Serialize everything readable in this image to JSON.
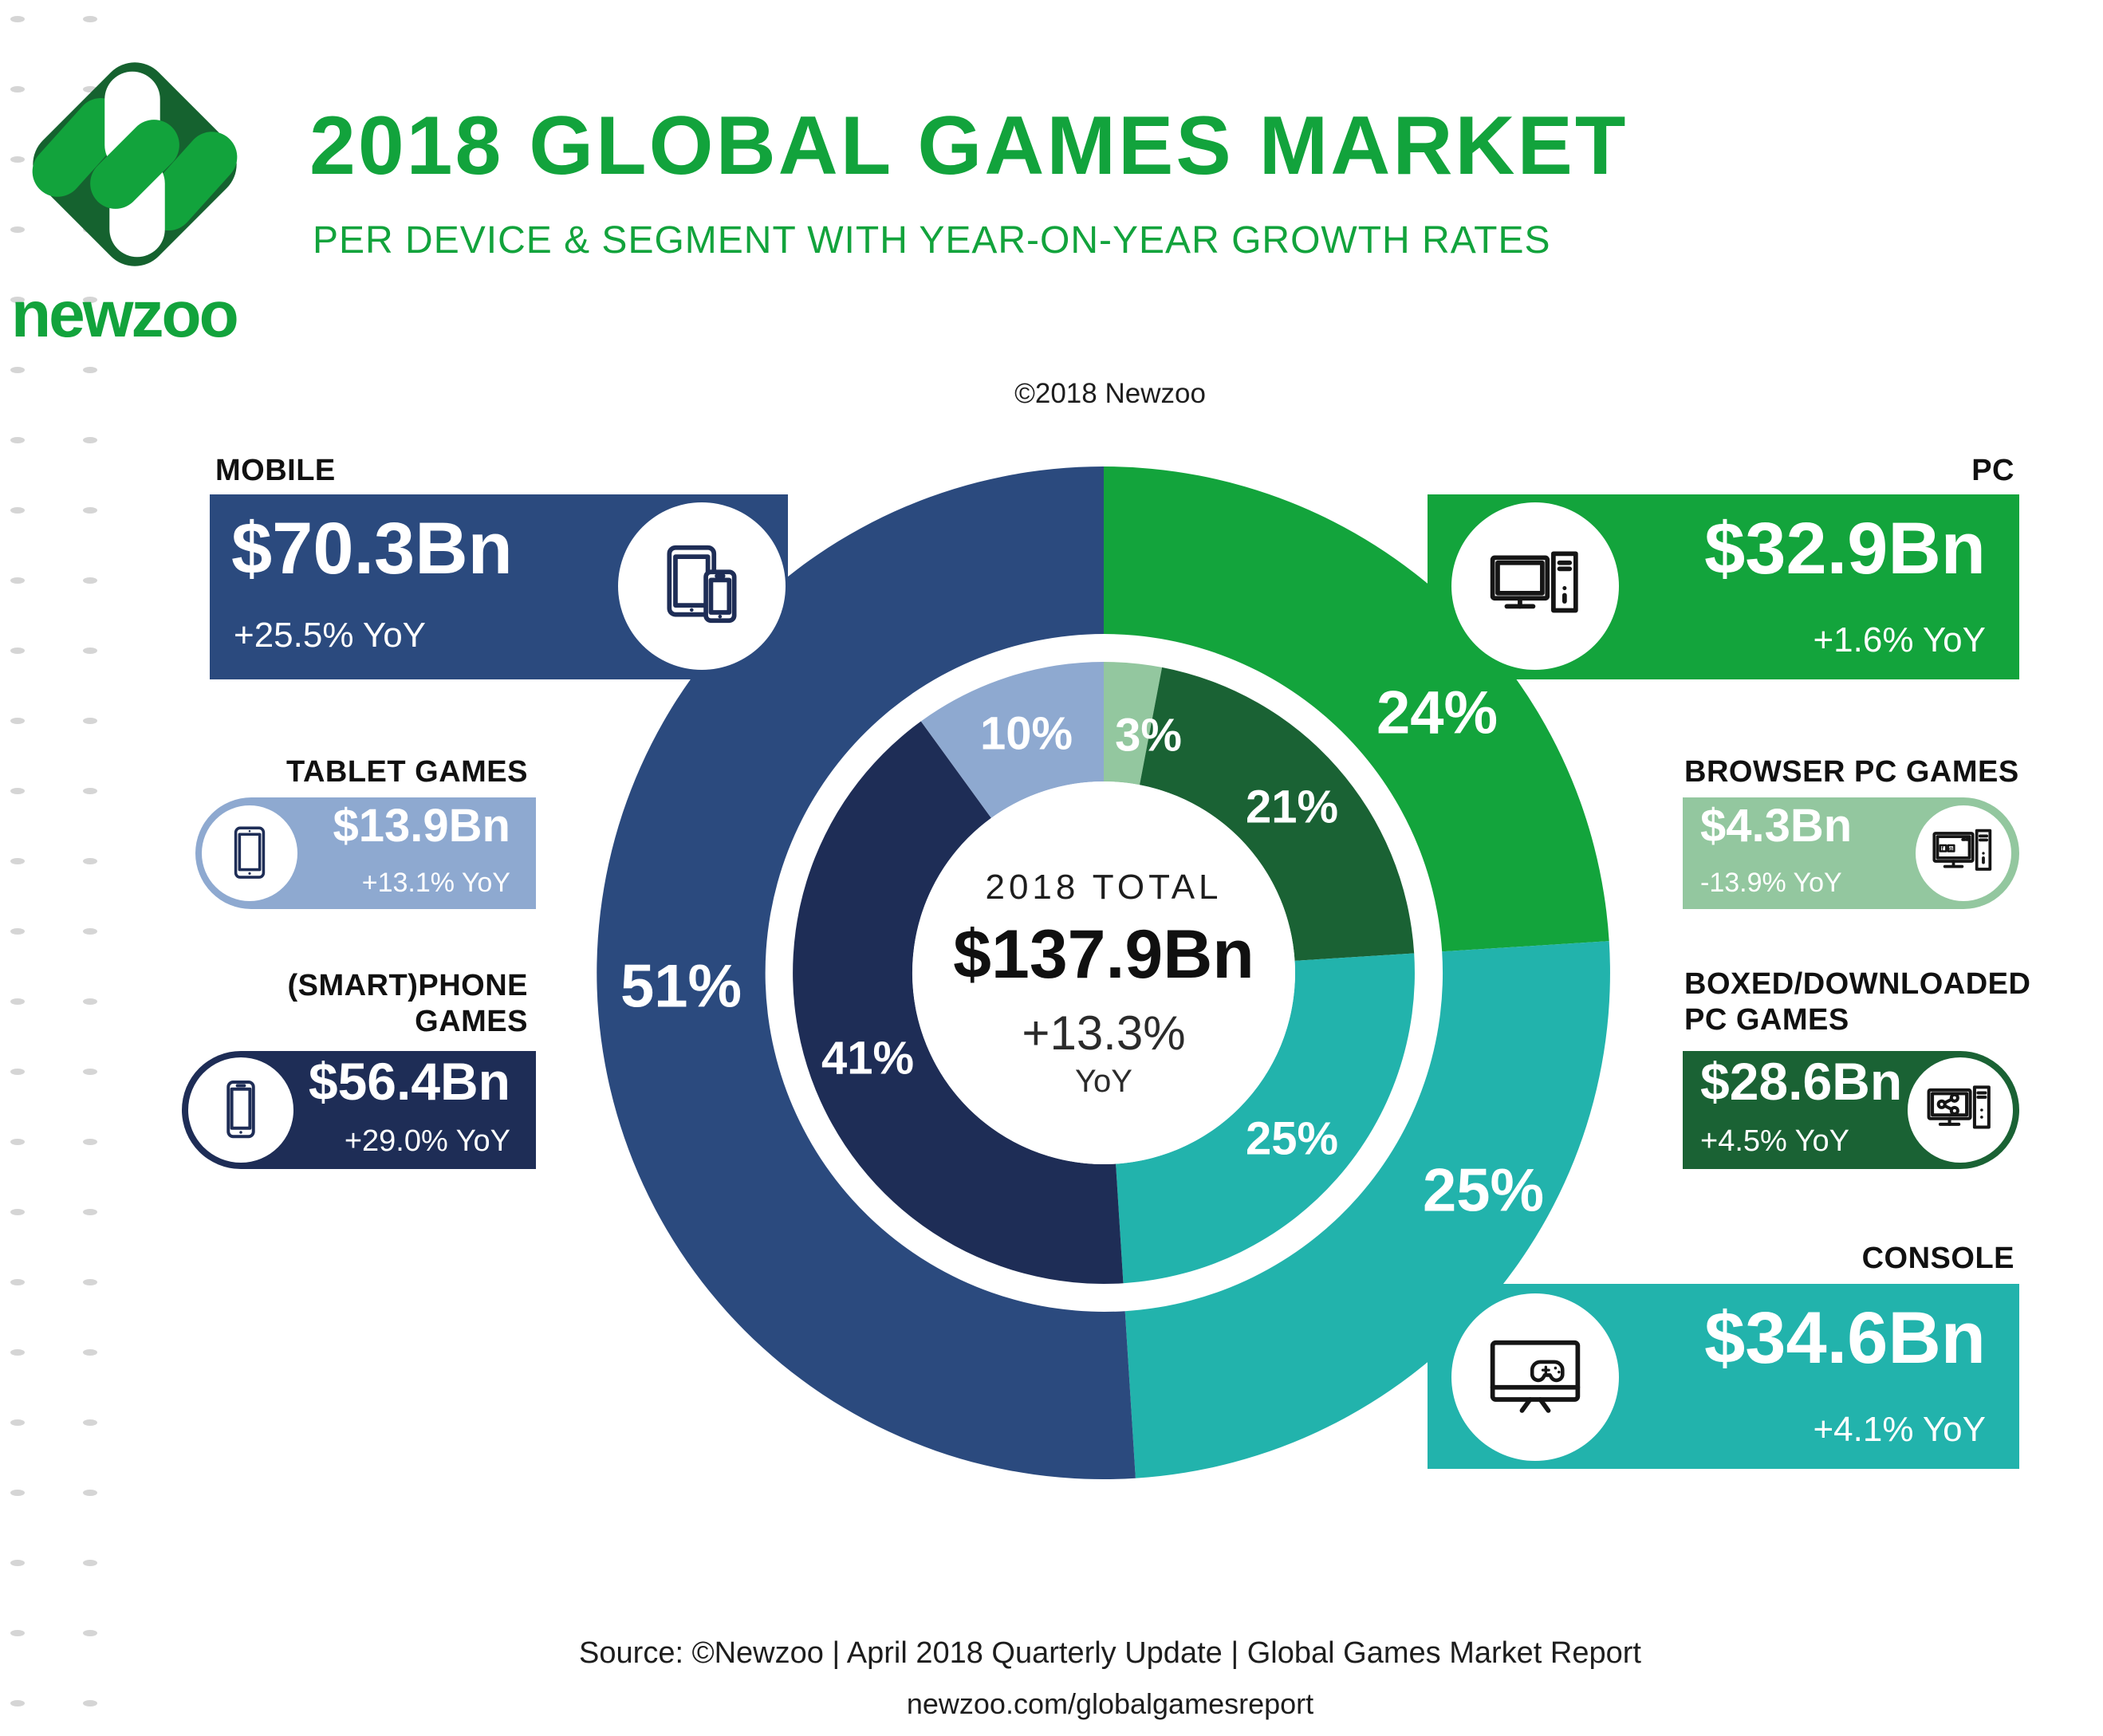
{
  "header": {
    "brand": "newzoo",
    "title": "2018 GLOBAL GAMES MARKET",
    "subtitle": "PER DEVICE & SEGMENT WITH YEAR-ON-YEAR GROWTH RATES",
    "copyright": "©2018 Newzoo",
    "accent_color": "#12a33c"
  },
  "center": {
    "label": "2018 TOTAL",
    "total": "$137.9Bn",
    "growth": "+13.3%",
    "growth_unit": "YoY"
  },
  "cards": [
    {
      "id": "mobile",
      "label": "MOBILE",
      "value": "$70.3Bn",
      "growth": "+25.5% YoY",
      "color": "#2b4a7e",
      "icon": "tablet-phone-icon",
      "icon_color": "#1e2d56"
    },
    {
      "id": "tablet",
      "label": "TABLET GAMES",
      "value": "$13.9Bn",
      "growth": "+13.1% YoY",
      "color": "#8ea9d0",
      "icon": "tablet-icon",
      "icon_color": "#1e2d56"
    },
    {
      "id": "smartphone",
      "label": "(SMART)PHONE\nGAMES",
      "value": "$56.4Bn",
      "growth": "+29.0% YoY",
      "color": "#1e2d56",
      "icon": "smartphone-icon",
      "icon_color": "#1e2d56"
    },
    {
      "id": "pc",
      "label": "PC",
      "value": "$32.9Bn",
      "growth": "+1.6% YoY",
      "color": "#13a43c",
      "icon": "desktop-pc-icon",
      "icon_color": "#151515"
    },
    {
      "id": "browser",
      "label": "BROWSER PC GAMES",
      "value": "$4.3Bn",
      "growth": "-13.9% YoY",
      "color": "#93c79f",
      "icon": "browser-pc-icon",
      "icon_color": "#151515"
    },
    {
      "id": "boxed",
      "label": "BOXED/DOWNLOADED\nPC GAMES",
      "value": "$28.6Bn",
      "growth": "+4.5% YoY",
      "color": "#1a6234",
      "icon": "share-pc-icon",
      "icon_color": "#151515"
    },
    {
      "id": "console",
      "label": "CONSOLE",
      "value": "$34.6Bn",
      "growth": "+4.1% YoY",
      "color": "#22b3ac",
      "icon": "tv-gamepad-icon",
      "icon_color": "#151515"
    }
  ],
  "footer": {
    "source": "Source: ©Newzoo | April 2018 Quarterly Update | Global Games Market Report",
    "url": "newzoo.com/globalgamesreport"
  },
  "chart_data": {
    "type": "donut",
    "title": "2018 Global Games Market per Device & Segment with Year-on-Year Growth Rates",
    "center_label": "2018 TOTAL",
    "center_value": "$137.9Bn",
    "center_growth": "+13.3% YoY",
    "legend_position": "none",
    "rings": [
      {
        "name": "device",
        "segments": [
          {
            "label": "PC",
            "value": 24,
            "color": "#13a43c",
            "revenue_bn": 32.9,
            "yoy": "+1.6%"
          },
          {
            "label": "Console",
            "value": 25,
            "color": "#22b3ac",
            "revenue_bn": 34.6,
            "yoy": "+4.1%"
          },
          {
            "label": "Mobile",
            "value": 51,
            "color": "#2b4a7e",
            "revenue_bn": 70.3,
            "yoy": "+25.5%"
          }
        ]
      },
      {
        "name": "segment",
        "segments": [
          {
            "label": "Browser PC Games",
            "value": 3,
            "color": "#93c79f",
            "revenue_bn": 4.3,
            "yoy": "-13.9%"
          },
          {
            "label": "Boxed/Downloaded PC Games",
            "value": 21,
            "color": "#1a6234",
            "revenue_bn": 28.6,
            "yoy": "+4.5%"
          },
          {
            "label": "Console",
            "value": 25,
            "color": "#22b3ac",
            "revenue_bn": 34.6,
            "yoy": "+4.1%"
          },
          {
            "label": "(Smart)phone Games",
            "value": 41,
            "color": "#1e2d56",
            "revenue_bn": 56.4,
            "yoy": "+29.0%"
          },
          {
            "label": "Tablet Games",
            "value": 10,
            "color": "#8ea9d0",
            "revenue_bn": 13.9,
            "yoy": "+13.1%"
          }
        ]
      }
    ],
    "total_bn": 137.9,
    "total_yoy": "+13.3%"
  }
}
